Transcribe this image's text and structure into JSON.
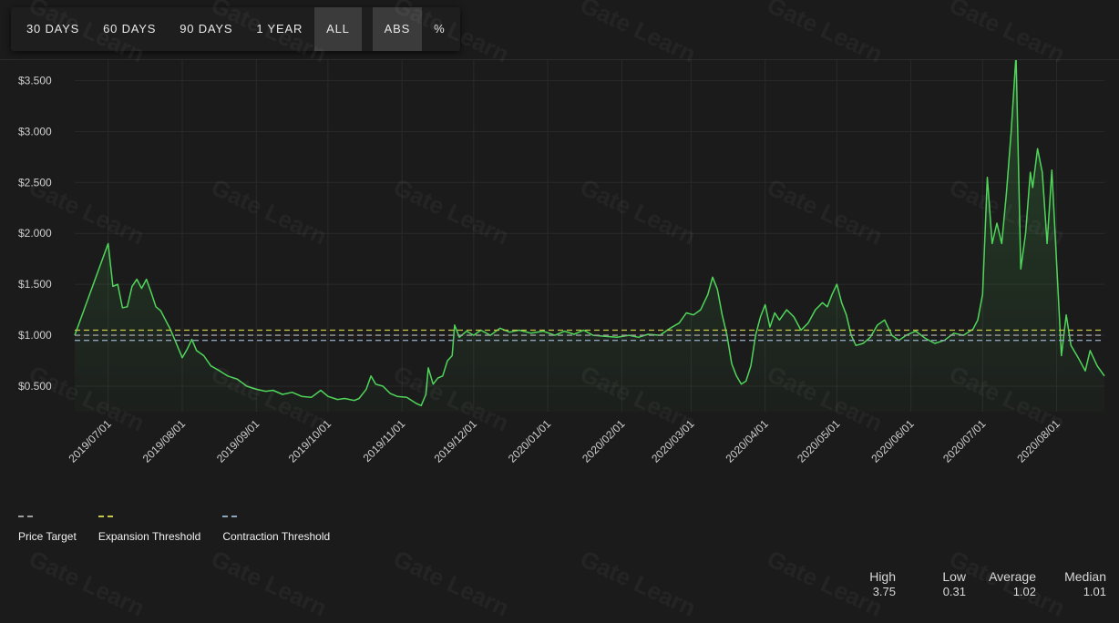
{
  "toolbar": {
    "range_buttons": [
      "30 DAYS",
      "60 DAYS",
      "90 DAYS",
      "1 YEAR",
      "ALL"
    ],
    "active_range": "ALL",
    "mode_buttons": [
      "ABS",
      "%"
    ],
    "active_mode": "ABS"
  },
  "watermark": "Gate Learn",
  "legend": [
    {
      "label": "Price Target",
      "color": "#9e9e9e"
    },
    {
      "label": "Expansion Threshold",
      "color": "#c8c84a"
    },
    {
      "label": "Contraction Threshold",
      "color": "#8ea4bd"
    }
  ],
  "stats": [
    {
      "label": "High",
      "value": "3.75"
    },
    {
      "label": "Low",
      "value": "0.31"
    },
    {
      "label": "Average",
      "value": "1.02"
    },
    {
      "label": "Median",
      "value": "1.01"
    }
  ],
  "chart_data": {
    "type": "line",
    "x_axis": "date",
    "xlim": [
      "2019-06-17",
      "2020-08-21"
    ],
    "ylim": [
      0.25,
      3.7
    ],
    "y_ticks": [
      {
        "value": 0.5,
        "label": "$0.500"
      },
      {
        "value": 1.0,
        "label": "$1.000"
      },
      {
        "value": 1.5,
        "label": "$1.500"
      },
      {
        "value": 2.0,
        "label": "$2.000"
      },
      {
        "value": 2.5,
        "label": "$2.500"
      },
      {
        "value": 3.0,
        "label": "$3.000"
      },
      {
        "value": 3.5,
        "label": "$3.500"
      }
    ],
    "x_ticks": [
      {
        "value": "2019-07-01",
        "label": "2019/07/01"
      },
      {
        "value": "2019-08-01",
        "label": "2019/08/01"
      },
      {
        "value": "2019-09-01",
        "label": "2019/09/01"
      },
      {
        "value": "2019-10-01",
        "label": "2019/10/01"
      },
      {
        "value": "2019-11-01",
        "label": "2019/11/01"
      },
      {
        "value": "2019-12-01",
        "label": "2019/12/01"
      },
      {
        "value": "2020-01-01",
        "label": "2020/01/01"
      },
      {
        "value": "2020-02-01",
        "label": "2020/02/01"
      },
      {
        "value": "2020-03-01",
        "label": "2020/03/01"
      },
      {
        "value": "2020-04-01",
        "label": "2020/04/01"
      },
      {
        "value": "2020-05-01",
        "label": "2020/05/01"
      },
      {
        "value": "2020-06-01",
        "label": "2020/06/01"
      },
      {
        "value": "2020-07-01",
        "label": "2020/07/01"
      },
      {
        "value": "2020-08-01",
        "label": "2020/08/01"
      }
    ],
    "grid": true,
    "thresholds": [
      {
        "value": 1.0,
        "color": "#9e9e9e"
      },
      {
        "value": 1.05,
        "color": "#c8c84a"
      },
      {
        "value": 0.95,
        "color": "#8ea4bd"
      }
    ],
    "series": [
      {
        "color": "#4fd65a",
        "points": [
          [
            "2019-06-17",
            1.0
          ],
          [
            "2019-07-01",
            1.9
          ],
          [
            "2019-07-03",
            1.48
          ],
          [
            "2019-07-05",
            1.5
          ],
          [
            "2019-07-07",
            1.27
          ],
          [
            "2019-07-09",
            1.28
          ],
          [
            "2019-07-11",
            1.48
          ],
          [
            "2019-07-13",
            1.55
          ],
          [
            "2019-07-15",
            1.46
          ],
          [
            "2019-07-17",
            1.55
          ],
          [
            "2019-07-19",
            1.42
          ],
          [
            "2019-07-21",
            1.28
          ],
          [
            "2019-07-23",
            1.24
          ],
          [
            "2019-07-25",
            1.15
          ],
          [
            "2019-07-27",
            1.06
          ],
          [
            "2019-07-29",
            0.95
          ],
          [
            "2019-08-01",
            0.78
          ],
          [
            "2019-08-03",
            0.86
          ],
          [
            "2019-08-05",
            0.96
          ],
          [
            "2019-08-07",
            0.85
          ],
          [
            "2019-08-10",
            0.8
          ],
          [
            "2019-08-13",
            0.7
          ],
          [
            "2019-08-16",
            0.66
          ],
          [
            "2019-08-20",
            0.6
          ],
          [
            "2019-08-24",
            0.57
          ],
          [
            "2019-08-28",
            0.5
          ],
          [
            "2019-09-01",
            0.47
          ],
          [
            "2019-09-05",
            0.45
          ],
          [
            "2019-09-08",
            0.46
          ],
          [
            "2019-09-12",
            0.42
          ],
          [
            "2019-09-16",
            0.44
          ],
          [
            "2019-09-20",
            0.4
          ],
          [
            "2019-09-24",
            0.39
          ],
          [
            "2019-09-28",
            0.46
          ],
          [
            "2019-10-01",
            0.4
          ],
          [
            "2019-10-05",
            0.37
          ],
          [
            "2019-10-08",
            0.38
          ],
          [
            "2019-10-12",
            0.36
          ],
          [
            "2019-10-14",
            0.38
          ],
          [
            "2019-10-17",
            0.47
          ],
          [
            "2019-10-19",
            0.6
          ],
          [
            "2019-10-21",
            0.52
          ],
          [
            "2019-10-24",
            0.5
          ],
          [
            "2019-10-27",
            0.43
          ],
          [
            "2019-10-30",
            0.4
          ],
          [
            "2019-11-03",
            0.39
          ],
          [
            "2019-11-07",
            0.33
          ],
          [
            "2019-11-09",
            0.31
          ],
          [
            "2019-11-11",
            0.42
          ],
          [
            "2019-11-12",
            0.68
          ],
          [
            "2019-11-14",
            0.52
          ],
          [
            "2019-11-16",
            0.58
          ],
          [
            "2019-11-18",
            0.6
          ],
          [
            "2019-11-20",
            0.75
          ],
          [
            "2019-11-22",
            0.8
          ],
          [
            "2019-11-23",
            1.1
          ],
          [
            "2019-11-25",
            0.98
          ],
          [
            "2019-11-28",
            1.04
          ],
          [
            "2019-12-01",
            1.0
          ],
          [
            "2019-12-04",
            1.05
          ],
          [
            "2019-12-08",
            1.0
          ],
          [
            "2019-12-12",
            1.07
          ],
          [
            "2019-12-16",
            1.03
          ],
          [
            "2019-12-20",
            1.05
          ],
          [
            "2019-12-25",
            1.02
          ],
          [
            "2019-12-30",
            1.04
          ],
          [
            "2020-01-04",
            1.0
          ],
          [
            "2020-01-08",
            1.04
          ],
          [
            "2020-01-12",
            1.01
          ],
          [
            "2020-01-16",
            1.05
          ],
          [
            "2020-01-20",
            1.0
          ],
          [
            "2020-01-25",
            0.99
          ],
          [
            "2020-01-30",
            0.98
          ],
          [
            "2020-02-04",
            1.0
          ],
          [
            "2020-02-08",
            0.98
          ],
          [
            "2020-02-12",
            1.01
          ],
          [
            "2020-02-17",
            1.0
          ],
          [
            "2020-02-20",
            1.05
          ],
          [
            "2020-02-22",
            1.08
          ],
          [
            "2020-02-25",
            1.12
          ],
          [
            "2020-02-28",
            1.22
          ],
          [
            "2020-03-02",
            1.2
          ],
          [
            "2020-03-05",
            1.25
          ],
          [
            "2020-03-08",
            1.4
          ],
          [
            "2020-03-10",
            1.57
          ],
          [
            "2020-03-12",
            1.45
          ],
          [
            "2020-03-14",
            1.2
          ],
          [
            "2020-03-16",
            1.0
          ],
          [
            "2020-03-18",
            0.72
          ],
          [
            "2020-03-20",
            0.6
          ],
          [
            "2020-03-22",
            0.52
          ],
          [
            "2020-03-24",
            0.55
          ],
          [
            "2020-03-26",
            0.7
          ],
          [
            "2020-03-28",
            1.0
          ],
          [
            "2020-03-30",
            1.18
          ],
          [
            "2020-04-01",
            1.3
          ],
          [
            "2020-04-03",
            1.08
          ],
          [
            "2020-04-05",
            1.22
          ],
          [
            "2020-04-07",
            1.15
          ],
          [
            "2020-04-10",
            1.25
          ],
          [
            "2020-04-13",
            1.18
          ],
          [
            "2020-04-16",
            1.05
          ],
          [
            "2020-04-19",
            1.12
          ],
          [
            "2020-04-22",
            1.25
          ],
          [
            "2020-04-25",
            1.32
          ],
          [
            "2020-04-27",
            1.28
          ],
          [
            "2020-04-29",
            1.4
          ],
          [
            "2020-05-01",
            1.5
          ],
          [
            "2020-05-03",
            1.32
          ],
          [
            "2020-05-05",
            1.2
          ],
          [
            "2020-05-07",
            1.0
          ],
          [
            "2020-05-09",
            0.9
          ],
          [
            "2020-05-12",
            0.92
          ],
          [
            "2020-05-15",
            0.98
          ],
          [
            "2020-05-18",
            1.1
          ],
          [
            "2020-05-21",
            1.15
          ],
          [
            "2020-05-24",
            1.0
          ],
          [
            "2020-05-27",
            0.95
          ],
          [
            "2020-05-30",
            1.0
          ],
          [
            "2020-06-03",
            1.04
          ],
          [
            "2020-06-07",
            0.97
          ],
          [
            "2020-06-11",
            0.92
          ],
          [
            "2020-06-15",
            0.95
          ],
          [
            "2020-06-19",
            1.02
          ],
          [
            "2020-06-23",
            1.0
          ],
          [
            "2020-06-27",
            1.06
          ],
          [
            "2020-06-29",
            1.15
          ],
          [
            "2020-07-01",
            1.4
          ],
          [
            "2020-07-03",
            2.55
          ],
          [
            "2020-07-05",
            1.9
          ],
          [
            "2020-07-07",
            2.1
          ],
          [
            "2020-07-09",
            1.9
          ],
          [
            "2020-07-11",
            2.4
          ],
          [
            "2020-07-13",
            3.0
          ],
          [
            "2020-07-15",
            3.75
          ],
          [
            "2020-07-17",
            1.65
          ],
          [
            "2020-07-19",
            2.0
          ],
          [
            "2020-07-21",
            2.6
          ],
          [
            "2020-07-22",
            2.45
          ],
          [
            "2020-07-24",
            2.83
          ],
          [
            "2020-07-26",
            2.6
          ],
          [
            "2020-07-28",
            1.9
          ],
          [
            "2020-07-30",
            2.62
          ],
          [
            "2020-08-01",
            1.7
          ],
          [
            "2020-08-03",
            0.8
          ],
          [
            "2020-08-05",
            1.2
          ],
          [
            "2020-08-07",
            0.9
          ],
          [
            "2020-08-10",
            0.78
          ],
          [
            "2020-08-13",
            0.65
          ],
          [
            "2020-08-15",
            0.85
          ],
          [
            "2020-08-18",
            0.7
          ],
          [
            "2020-08-21",
            0.6
          ]
        ]
      }
    ]
  }
}
